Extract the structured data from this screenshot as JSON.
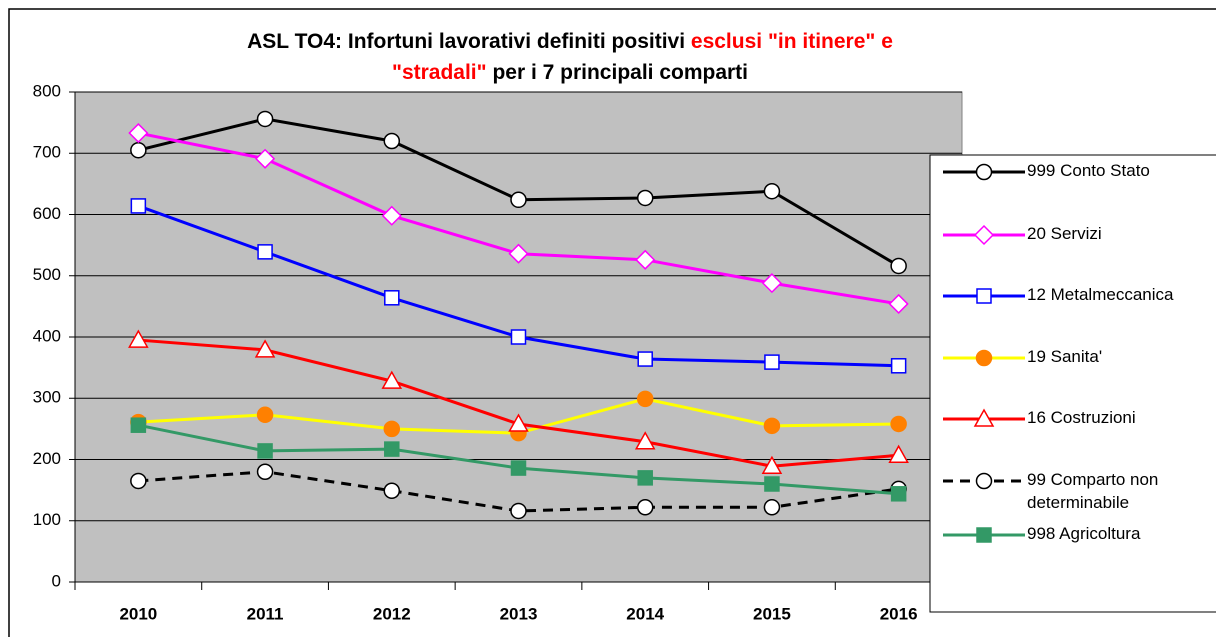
{
  "chart_data": {
    "type": "line",
    "title": [
      [
        {
          "text": "ASL TO4: Infortuni lavorativi definiti positivi ",
          "color": "#000000"
        },
        {
          "text": "esclusi \"in itinere\" e",
          "color": "#ff0000"
        }
      ],
      [
        {
          "text": "\"stradali\"",
          "color": "#ff0000"
        },
        {
          "text": " per i 7 principali comparti",
          "color": "#000000"
        }
      ]
    ],
    "categories": [
      "2010",
      "2011",
      "2012",
      "2013",
      "2014",
      "2015",
      "2016"
    ],
    "ylim": [
      0,
      800
    ],
    "yticks": [
      0,
      100,
      200,
      300,
      400,
      500,
      600,
      700,
      800
    ],
    "grid": true,
    "legend": "right",
    "series": [
      {
        "name": "999 Conto Stato",
        "color": "#000000",
        "marker": "circle",
        "marker_fill": "#ffffff",
        "dash": false,
        "values": [
          705,
          756,
          720,
          624,
          627,
          638,
          516
        ]
      },
      {
        "name": "20 Servizi",
        "color": "#ff00ff",
        "marker": "diamond",
        "marker_fill": "#ffffff",
        "dash": false,
        "values": [
          733,
          691,
          598,
          536,
          526,
          488,
          454
        ]
      },
      {
        "name": "12 Metalmeccanica",
        "color": "#0000ff",
        "marker": "square",
        "marker_fill": "#ffffff",
        "dash": false,
        "values": [
          614,
          539,
          464,
          400,
          364,
          359,
          353
        ]
      },
      {
        "name": "19 Sanita'",
        "color": "#ffff00",
        "marker": "circle",
        "marker_fill": "#ff8000",
        "marker_stroke": "#ff8000",
        "dash": false,
        "values": [
          261,
          273,
          250,
          243,
          299,
          255,
          258
        ]
      },
      {
        "name": "16 Costruzioni",
        "color": "#ff0000",
        "marker": "triangle",
        "marker_fill": "#ffffff",
        "dash": false,
        "values": [
          395,
          379,
          328,
          258,
          229,
          189,
          207
        ]
      },
      {
        "name": "99 Comparto non determinabile",
        "color": "#000000",
        "marker": "circle",
        "marker_fill": "#ffffff",
        "dash": true,
        "values": [
          165,
          180,
          149,
          116,
          122,
          122,
          152
        ]
      },
      {
        "name": "998 Agricoltura",
        "color": "#339966",
        "marker": "square",
        "marker_fill": "#339966",
        "dash": false,
        "values": [
          256,
          214,
          217,
          186,
          170,
          160,
          144
        ]
      }
    ]
  }
}
